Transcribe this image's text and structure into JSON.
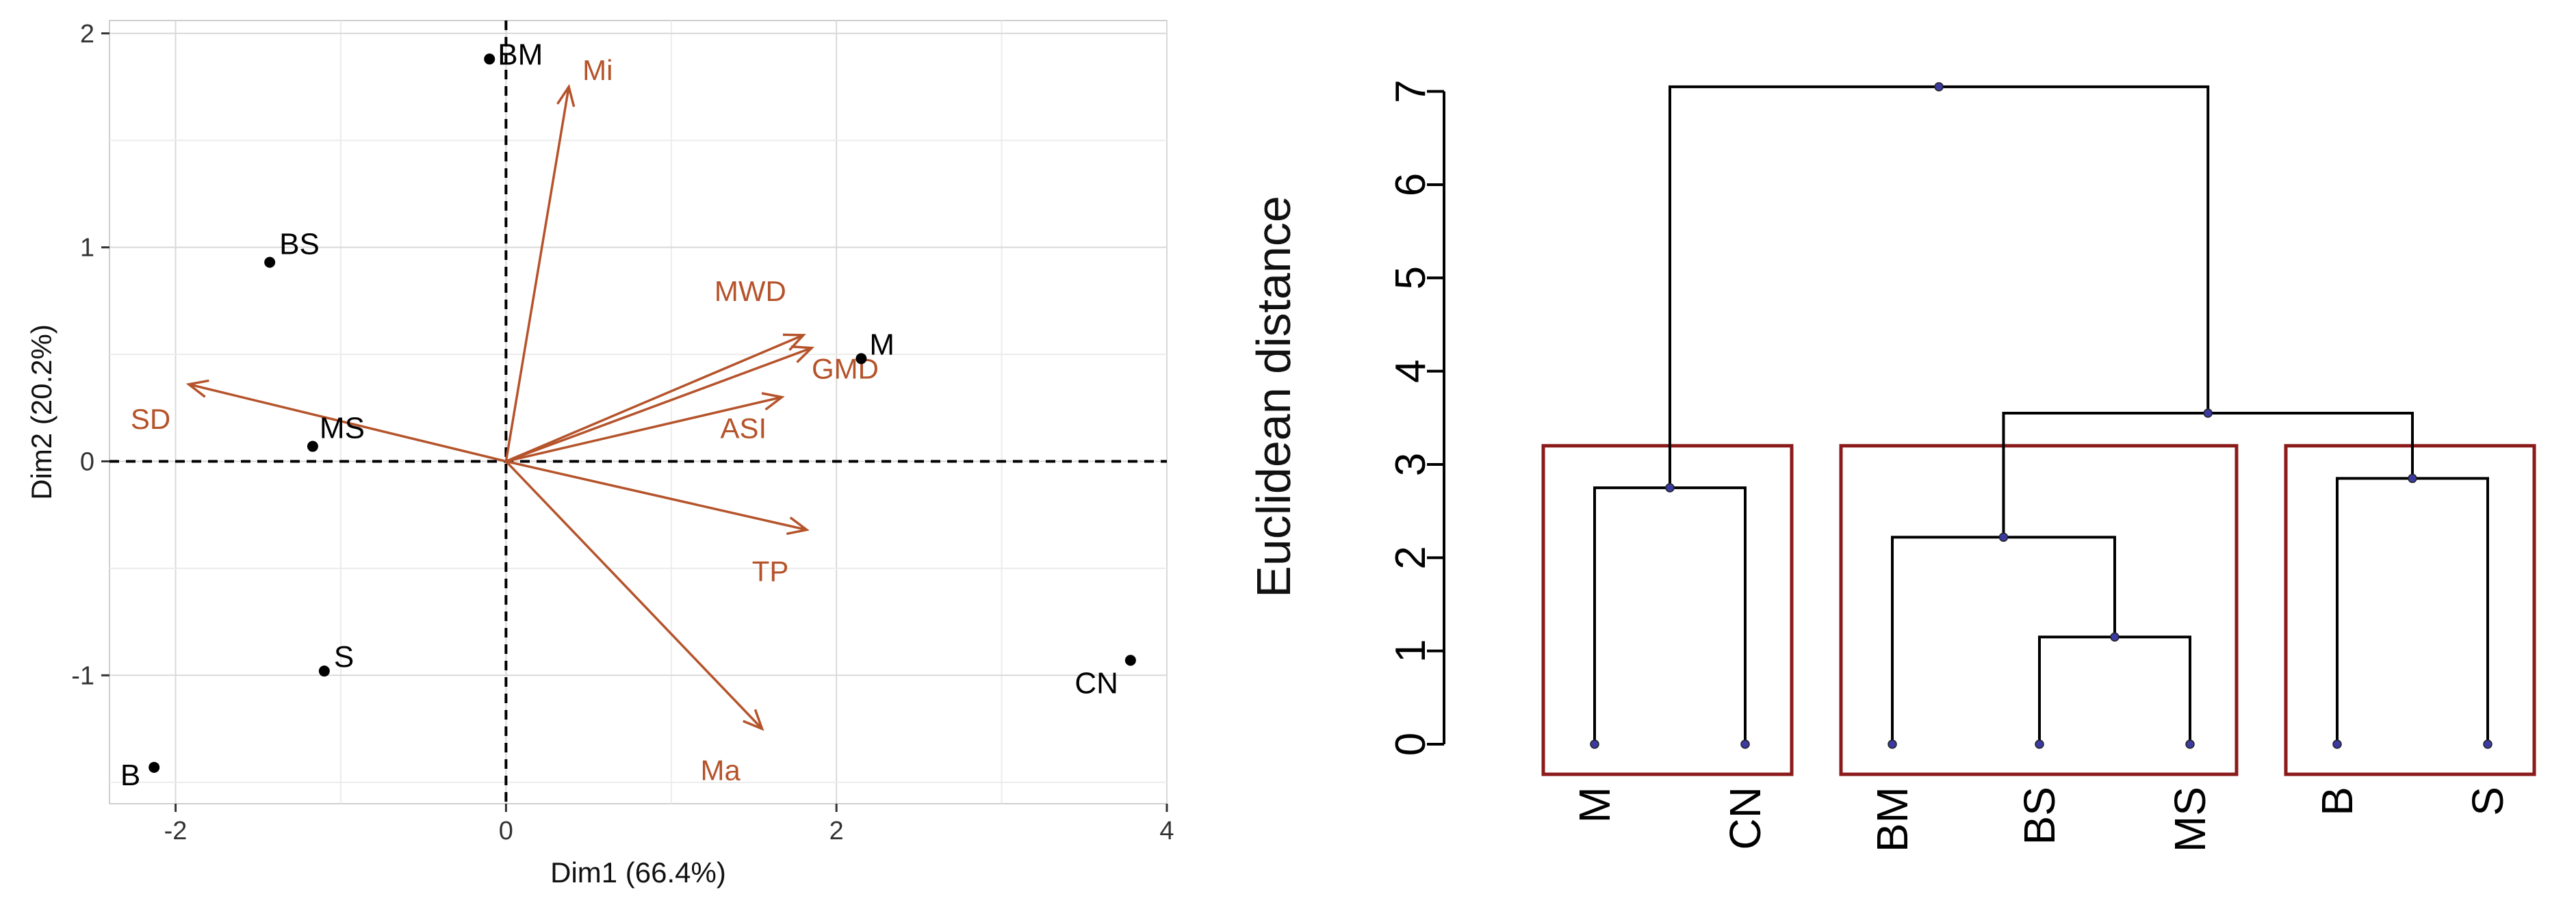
{
  "chart_data": [
    {
      "type": "scatter",
      "subtype": "pca-biplot",
      "title": "",
      "xlabel": "Dim1 (66.4%)",
      "ylabel": "Dim2 (20.2%)",
      "xlim": [
        -2.4,
        4.0
      ],
      "ylim": [
        -1.6,
        2.06
      ],
      "xticks": [
        -2,
        0,
        2,
        4
      ],
      "yticks": [
        -1,
        0,
        1,
        2
      ],
      "grid": true,
      "axes_dashed_at_zero": true,
      "point_color": "#000000",
      "arrow_color": "#b5532b",
      "points": [
        {
          "label": "BM",
          "x": -0.1,
          "y": 1.88
        },
        {
          "label": "BS",
          "x": -1.43,
          "y": 0.93
        },
        {
          "label": "MS",
          "x": -1.17,
          "y": 0.07
        },
        {
          "label": "S",
          "x": -1.1,
          "y": -0.98
        },
        {
          "label": "B",
          "x": -2.13,
          "y": -1.43
        },
        {
          "label": "M",
          "x": 2.15,
          "y": 0.48
        },
        {
          "label": "CN",
          "x": 3.78,
          "y": -0.93
        }
      ],
      "arrows": [
        {
          "label": "Mi",
          "x": 0.38,
          "y": 1.75
        },
        {
          "label": "MWD",
          "x": 1.8,
          "y": 0.59
        },
        {
          "label": "GMD",
          "x": 1.85,
          "y": 0.53
        },
        {
          "label": "ASI",
          "x": 1.67,
          "y": 0.3
        },
        {
          "label": "SD",
          "x": -1.92,
          "y": 0.36
        },
        {
          "label": "TP",
          "x": 1.82,
          "y": -0.32
        },
        {
          "label": "Ma",
          "x": 1.55,
          "y": -1.25
        }
      ]
    },
    {
      "type": "dendrogram",
      "title": "",
      "ylabel": "Euclidean distance",
      "ylim": [
        0,
        7.1
      ],
      "yticks": [
        0,
        1,
        2,
        3,
        4,
        5,
        6,
        7
      ],
      "line_color": "#000000",
      "node_color": "#3a3aa0",
      "cluster_box_color": "#8b1a1a",
      "leaves": [
        "M",
        "CN",
        "BM",
        "BS",
        "MS",
        "B",
        "S"
      ],
      "merges": [
        {
          "children": [
            "leaf:BS",
            "leaf:MS"
          ],
          "height": 1.15
        },
        {
          "children": [
            "leaf:BM",
            "node:0"
          ],
          "height": 2.22
        },
        {
          "children": [
            "leaf:M",
            "leaf:CN"
          ],
          "height": 2.75
        },
        {
          "children": [
            "leaf:B",
            "leaf:S"
          ],
          "height": 2.85
        },
        {
          "children": [
            "node:1",
            "node:3"
          ],
          "height": 3.55
        },
        {
          "children": [
            "node:2",
            "node:4"
          ],
          "height": 7.05
        }
      ],
      "clusters": [
        {
          "leaves": [
            "M",
            "CN"
          ]
        },
        {
          "leaves": [
            "BM",
            "BS",
            "MS"
          ]
        },
        {
          "leaves": [
            "B",
            "S"
          ]
        }
      ]
    }
  ]
}
